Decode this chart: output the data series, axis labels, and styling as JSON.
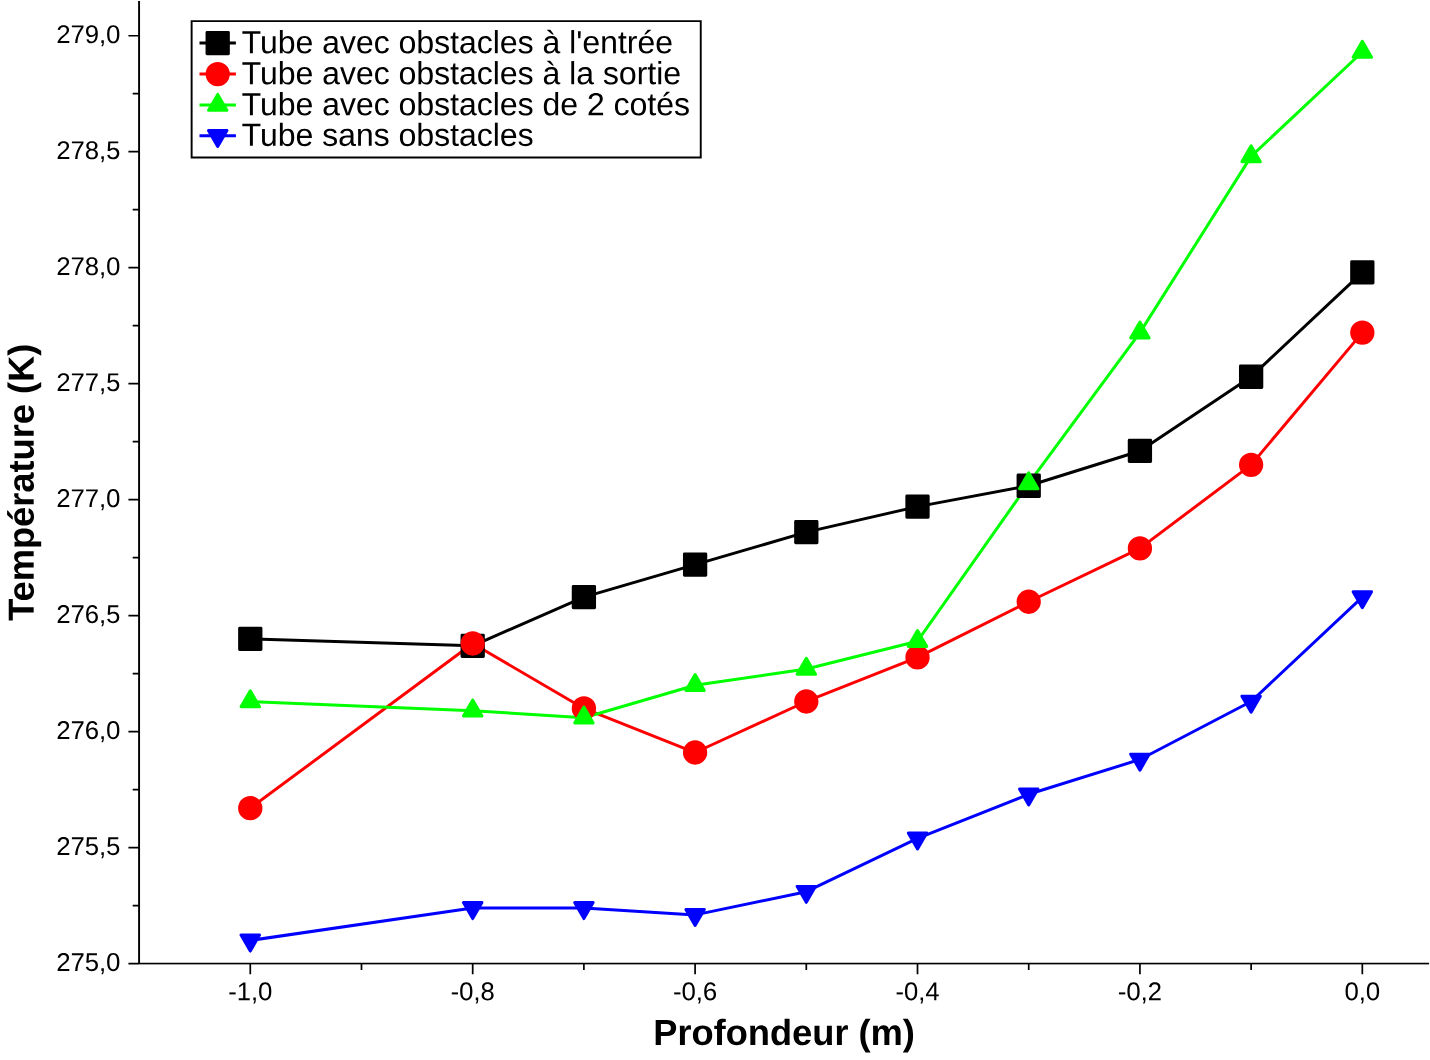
{
  "chart_data": {
    "type": "line",
    "xlabel": "Profondeur (m)",
    "ylabel": "Température (K)",
    "x": [
      -1.0,
      -0.8,
      -0.7,
      -0.6,
      -0.5,
      -0.4,
      -0.3,
      -0.2,
      -0.1,
      0.0
    ],
    "series": [
      {
        "name": "Tube avec obstacles à l'entrée",
        "color": "#000000",
        "marker": "square",
        "values": [
          276.4,
          276.37,
          276.58,
          276.72,
          276.86,
          276.97,
          277.06,
          277.21,
          277.53,
          277.98
        ]
      },
      {
        "name": "Tube avec obstacles à la sortie",
        "color": "#ff0000",
        "marker": "circle",
        "values": [
          275.67,
          276.38,
          276.1,
          275.91,
          276.13,
          276.32,
          276.56,
          276.79,
          277.15,
          277.72
        ]
      },
      {
        "name": "Tube avec obstacles de 2 cotés",
        "color": "#00ff00",
        "marker": "triangle",
        "values": [
          276.13,
          276.09,
          276.06,
          276.2,
          276.27,
          276.39,
          277.07,
          277.72,
          278.48,
          278.93
        ]
      },
      {
        "name": "Tube sans obstacles",
        "color": "#0000ff",
        "marker": "triangle-down",
        "values": [
          275.1,
          275.24,
          275.24,
          275.21,
          275.31,
          275.54,
          275.73,
          275.88,
          276.13,
          276.58
        ]
      }
    ],
    "xlim": [
      -1.1,
      0.06
    ],
    "ylim": [
      275.0,
      279.15
    ],
    "xticks": [
      {
        "value": -1.0,
        "label": "-1,0"
      },
      {
        "value": -0.8,
        "label": "-0,8"
      },
      {
        "value": -0.6,
        "label": "-0,6"
      },
      {
        "value": -0.4,
        "label": "-0,4"
      },
      {
        "value": -0.2,
        "label": "-0,2"
      },
      {
        "value": 0.0,
        "label": "0,0"
      }
    ],
    "yticks": [
      {
        "value": 275.0,
        "label": "275,0"
      },
      {
        "value": 275.5,
        "label": "275,5"
      },
      {
        "value": 276.0,
        "label": "276,0"
      },
      {
        "value": 276.5,
        "label": "276,5"
      },
      {
        "value": 277.0,
        "label": "277,0"
      },
      {
        "value": 277.5,
        "label": "277,5"
      },
      {
        "value": 278.0,
        "label": "278,0"
      },
      {
        "value": 278.5,
        "label": "278,5"
      },
      {
        "value": 279.0,
        "label": "279,0"
      }
    ],
    "grid": false,
    "legend": "top left",
    "line_style": "solid"
  }
}
